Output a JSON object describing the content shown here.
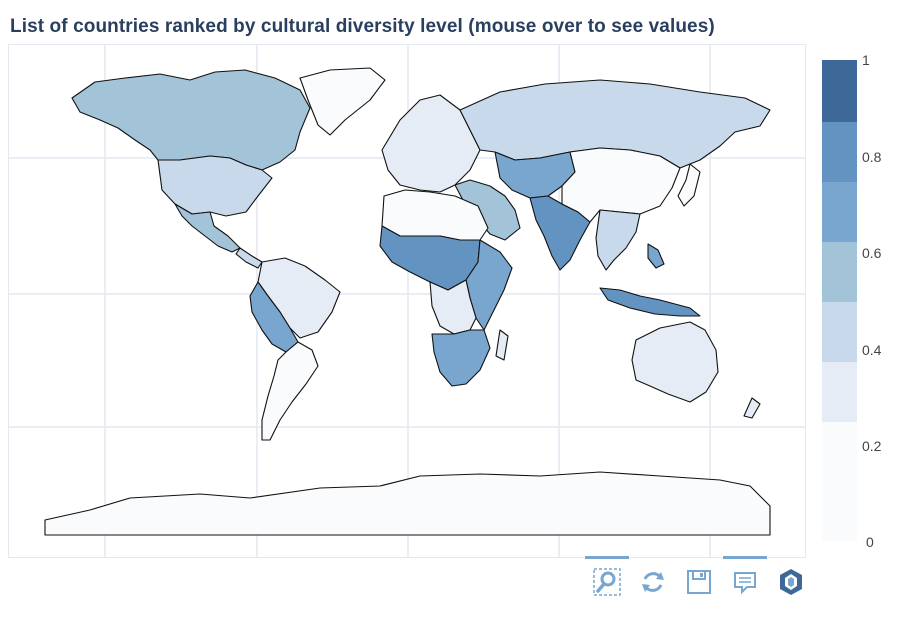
{
  "title": "List of countries ranked by cultural diversity level (mouse over to see values)",
  "colorscale": {
    "colors": [
      "#fafbfd",
      "#e6ecf5",
      "#c8d9ec",
      "#a3c3d8",
      "#78a6cf",
      "#6393c1",
      "#3e6898"
    ],
    "ticks": [
      "1",
      "0.8",
      "0.6",
      "0.4",
      "0.2",
      "0"
    ],
    "min": 0,
    "max": 1
  },
  "map": {
    "ocean_color": "#ffffff",
    "border_color": "#111111",
    "gridline_color": "#e4e8f0"
  },
  "toolbar": {
    "icons": [
      "zoom-icon",
      "reset-icon",
      "save-icon",
      "comment-icon",
      "logo-icon"
    ]
  }
}
